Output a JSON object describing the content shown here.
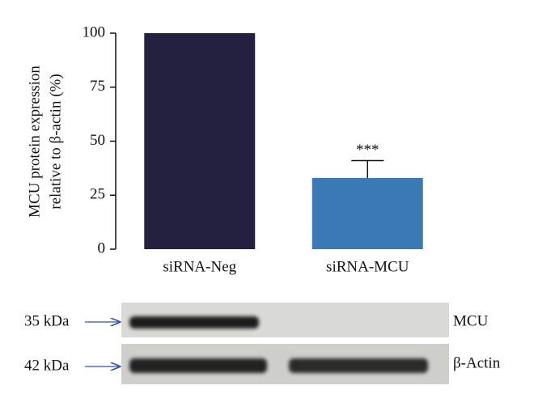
{
  "chart_data": {
    "type": "bar",
    "ylabel": [
      "MCU protein expression",
      "relative to β-actin (%)"
    ],
    "categories": [
      "siRNA-Neg",
      "siRNA-MCU"
    ],
    "values": [
      100,
      33
    ],
    "errors": [
      null,
      8
    ],
    "colors": [
      "#23213f",
      "#3a78b6"
    ],
    "annotation": "***",
    "ylim": [
      0,
      100
    ],
    "yticks": [
      0,
      25,
      50,
      75,
      100
    ]
  },
  "blot": {
    "rows": [
      {
        "size": "35 kDa",
        "label": "MCU"
      },
      {
        "size": "42 kDa",
        "label": "β-Actin"
      }
    ]
  }
}
